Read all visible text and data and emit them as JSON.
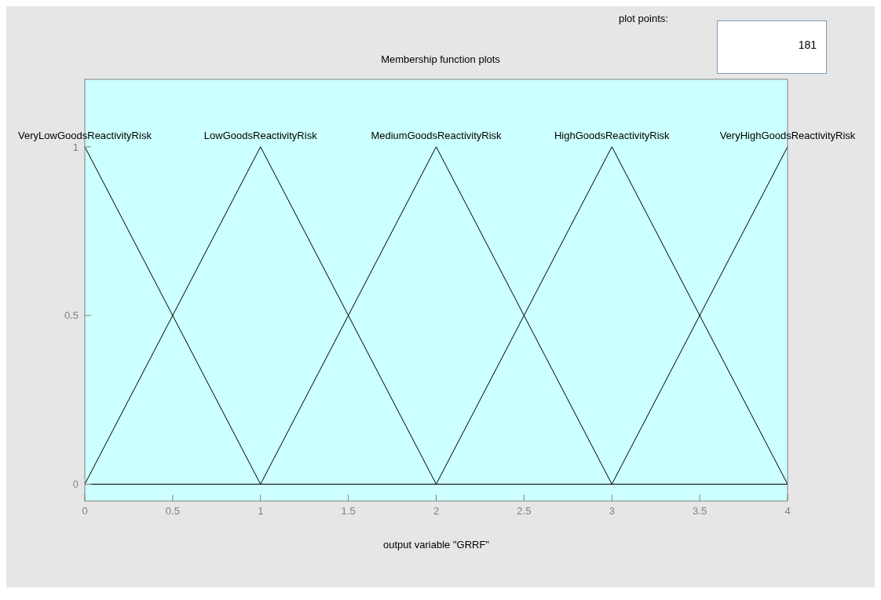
{
  "chart_data": {
    "type": "line",
    "title": "Membership function plots",
    "xlabel": "output variable \"GRRF\"",
    "annotations": [
      "plot points:",
      "181"
    ],
    "series": [
      {
        "name": "VeryLowGoodsReactivityRisk",
        "color": "#000000",
        "x": [
          0,
          1,
          4
        ],
        "values": [
          1,
          0,
          0
        ]
      },
      {
        "name": "LowGoodsReactivityRisk",
        "color": "#000000",
        "x": [
          0,
          1,
          2,
          4
        ],
        "values": [
          0,
          1,
          0,
          0
        ]
      },
      {
        "name": "MediumGoodsReactivityRisk",
        "color": "#000000",
        "x": [
          0,
          1,
          2,
          3,
          4
        ],
        "values": [
          0,
          0,
          1,
          0,
          0
        ]
      },
      {
        "name": "HighGoodsReactivityRisk",
        "color": "#000000",
        "x": [
          0,
          2,
          3,
          4
        ],
        "values": [
          0,
          0,
          1,
          0
        ]
      },
      {
        "name": "VeryHighGoodsReactivityRisk",
        "color": "#000000",
        "x": [
          0,
          3,
          4
        ],
        "values": [
          0,
          0,
          1
        ]
      }
    ],
    "xlim": [
      0,
      4
    ],
    "xticks": [
      0,
      0.5,
      1,
      1.5,
      2,
      2.5,
      3,
      3.5,
      4
    ],
    "ylim": [
      -0.05,
      1.2
    ],
    "yticks": [
      0,
      0.5,
      1
    ],
    "grid": false,
    "legend": false,
    "marker": "none",
    "line_style": "solid"
  }
}
